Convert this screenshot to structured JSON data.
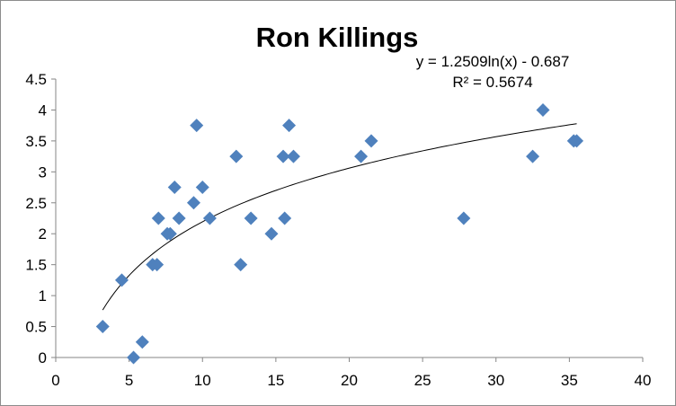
{
  "chart_data": {
    "type": "scatter",
    "title": "Ron Killings",
    "xlabel": "",
    "ylabel": "",
    "xlim": [
      0,
      40
    ],
    "ylim": [
      0,
      4.5
    ],
    "x_ticks": [
      0,
      5,
      10,
      15,
      20,
      25,
      30,
      35,
      40
    ],
    "y_ticks": [
      0,
      0.5,
      1,
      1.5,
      2,
      2.5,
      3,
      3.5,
      4,
      4.5
    ],
    "x_tick_labels": [
      "0",
      "5",
      "10",
      "15",
      "20",
      "25",
      "30",
      "35",
      "40"
    ],
    "y_tick_labels": [
      "0",
      "0.5",
      "1",
      "1.5",
      "2",
      "2.5",
      "3",
      "3.5",
      "4",
      "4.5"
    ],
    "grid": false,
    "marker": "diamond",
    "marker_color": "#4f81bd",
    "trendline_color": "#000000",
    "series": [
      {
        "name": "Ron Killings",
        "points": [
          {
            "x": 3.2,
            "y": 0.5
          },
          {
            "x": 4.5,
            "y": 1.25
          },
          {
            "x": 5.3,
            "y": 0
          },
          {
            "x": 5.9,
            "y": 0.25
          },
          {
            "x": 6.6,
            "y": 1.5
          },
          {
            "x": 6.9,
            "y": 1.5
          },
          {
            "x": 7.0,
            "y": 2.25
          },
          {
            "x": 7.6,
            "y": 2.0
          },
          {
            "x": 7.8,
            "y": 2.0
          },
          {
            "x": 8.1,
            "y": 2.75
          },
          {
            "x": 8.4,
            "y": 2.25
          },
          {
            "x": 9.4,
            "y": 2.5
          },
          {
            "x": 9.6,
            "y": 3.75
          },
          {
            "x": 10.0,
            "y": 2.75
          },
          {
            "x": 10.5,
            "y": 2.25
          },
          {
            "x": 12.3,
            "y": 3.25
          },
          {
            "x": 12.6,
            "y": 1.5
          },
          {
            "x": 13.3,
            "y": 2.25
          },
          {
            "x": 14.7,
            "y": 2.0
          },
          {
            "x": 15.5,
            "y": 3.25
          },
          {
            "x": 15.6,
            "y": 2.25
          },
          {
            "x": 15.9,
            "y": 3.75
          },
          {
            "x": 16.2,
            "y": 3.25
          },
          {
            "x": 20.8,
            "y": 3.25
          },
          {
            "x": 21.5,
            "y": 3.5
          },
          {
            "x": 27.8,
            "y": 2.25
          },
          {
            "x": 32.5,
            "y": 3.25
          },
          {
            "x": 33.2,
            "y": 4.0
          },
          {
            "x": 35.3,
            "y": 3.5
          },
          {
            "x": 35.5,
            "y": 3.5
          }
        ]
      }
    ],
    "trendline": {
      "type": "logarithmic",
      "a": 1.2509,
      "b": -0.687,
      "x_range": [
        3.2,
        35.5
      ],
      "equation_label": "y = 1.2509ln(x) - 0.687",
      "r2_label": "R² = 0.5674"
    }
  }
}
